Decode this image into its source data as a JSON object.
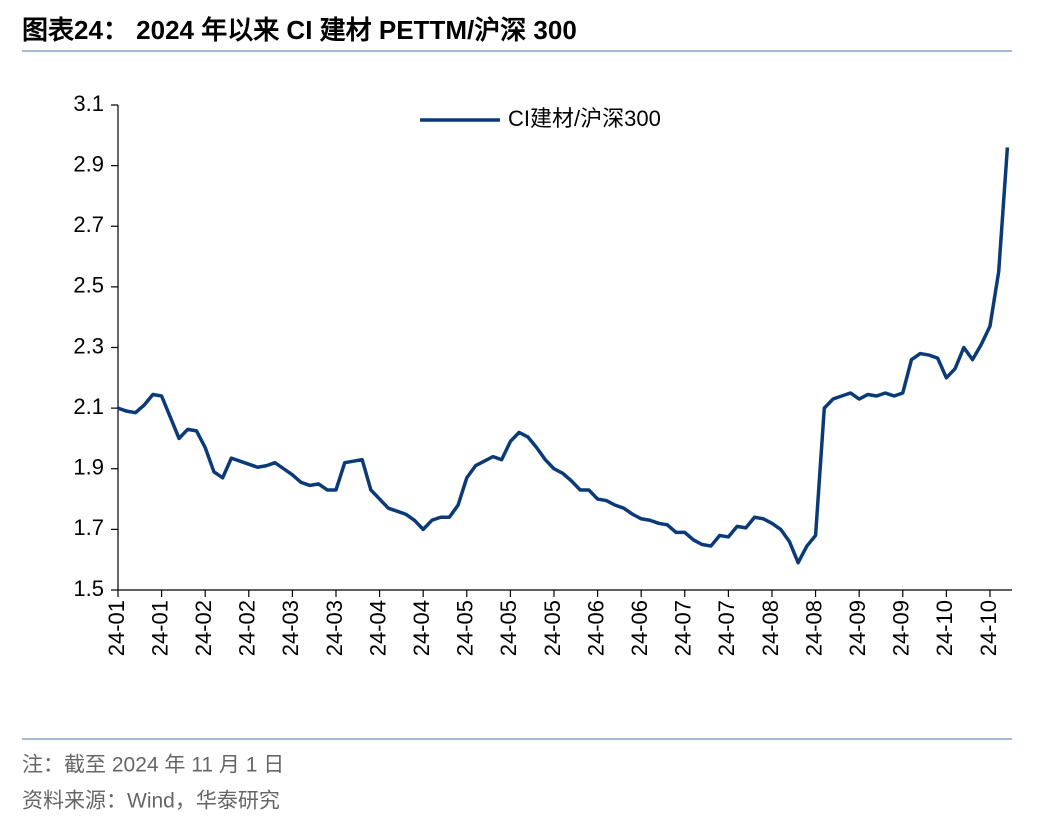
{
  "chart_data": {
    "type": "line",
    "title": "图表24：  2024 年以来 CI 建材 PETTM/沪深 300",
    "note": "注：截至 2024 年 11 月 1 日",
    "source": "资料来源：Wind，华泰研究",
    "legend": "upper center",
    "categories": [
      "24-01",
      null,
      null,
      null,
      null,
      "24-01",
      null,
      null,
      null,
      null,
      "24-02",
      null,
      null,
      null,
      null,
      "24-02",
      null,
      null,
      null,
      null,
      "24-03",
      null,
      null,
      null,
      null,
      "24-03",
      null,
      null,
      null,
      null,
      "24-04",
      null,
      null,
      null,
      null,
      "24-04",
      null,
      null,
      null,
      null,
      "24-05",
      null,
      null,
      null,
      null,
      "24-05",
      null,
      null,
      null,
      null,
      "24-05",
      null,
      null,
      null,
      null,
      "24-06",
      null,
      null,
      null,
      null,
      "24-06",
      null,
      null,
      null,
      null,
      "24-07",
      null,
      null,
      null,
      null,
      "24-07",
      null,
      null,
      null,
      null,
      "24-08",
      null,
      null,
      null,
      null,
      "24-08",
      null,
      null,
      null,
      null,
      "24-09",
      null,
      null,
      null,
      null,
      "24-09",
      null,
      null,
      null,
      null,
      "24-10",
      null,
      null,
      null,
      null,
      "24-10",
      null,
      null
    ],
    "series": [
      {
        "name": "CI建材/沪深300",
        "color": "#0b3a78",
        "values": [
          2.1,
          2.09,
          2.085,
          2.11,
          2.145,
          2.14,
          2.07,
          2.0,
          2.03,
          2.025,
          1.97,
          1.89,
          1.87,
          1.935,
          1.925,
          1.915,
          1.905,
          1.91,
          1.92,
          1.9,
          1.88,
          1.855,
          1.845,
          1.85,
          1.83,
          1.83,
          1.92,
          1.925,
          1.93,
          1.83,
          1.8,
          1.77,
          1.76,
          1.75,
          1.73,
          1.7,
          1.73,
          1.74,
          1.74,
          1.78,
          1.87,
          1.91,
          1.925,
          1.94,
          1.93,
          1.99,
          2.02,
          2.005,
          1.97,
          1.93,
          1.9,
          1.885,
          1.86,
          1.83,
          1.83,
          1.8,
          1.795,
          1.78,
          1.77,
          1.75,
          1.735,
          1.73,
          1.72,
          1.715,
          1.69,
          1.69,
          1.665,
          1.65,
          1.645,
          1.68,
          1.675,
          1.71,
          1.705,
          1.74,
          1.735,
          1.72,
          1.7,
          1.66,
          1.59,
          1.645,
          1.68,
          2.1,
          2.13,
          2.14,
          2.15,
          2.13,
          2.145,
          2.14,
          2.15,
          2.14,
          2.15,
          2.26,
          2.28,
          2.275,
          2.265,
          2.2,
          2.23,
          2.3,
          2.26,
          2.31,
          2.37,
          2.55,
          2.96
        ]
      }
    ],
    "ylim": [
      1.5,
      3.1
    ],
    "yticks": [
      1.5,
      1.7,
      1.9,
      2.1,
      2.3,
      2.5,
      2.7,
      2.9,
      3.1
    ]
  }
}
